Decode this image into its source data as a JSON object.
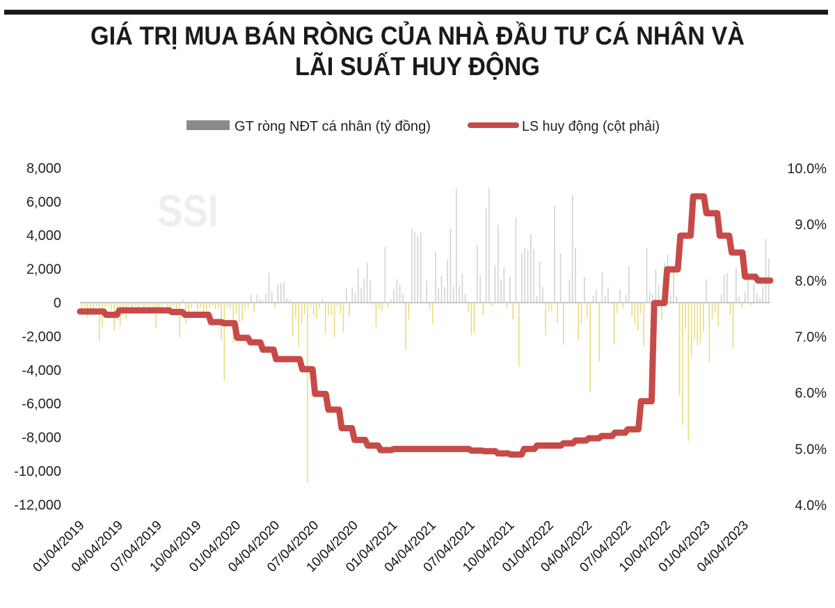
{
  "title_lines": [
    "GIÁ TRỊ MUA BÁN RÒNG CỦA NHÀ ĐẦU TƯ CÁ NHÂN VÀ",
    "LÃI SUẤT HUY ĐỘNG"
  ],
  "watermark": "SSI",
  "colors": {
    "rule": "#1a1a1a",
    "bar_positive": "#d2d2d2",
    "bar_negative": "#e9dc7c",
    "legend_bar": "#8a8a8a",
    "rate_line": "#c64b48",
    "zero_line": "#c8c8c8"
  },
  "chart_data": {
    "type": "bar+line",
    "title": "GIÁ TRỊ MUA BÁN RÒNG CỦA NHÀ ĐẦU TƯ CÁ NHÂN VÀ LÃI SUẤT HUY ĐỘNG",
    "legend": [
      {
        "label": "GT ròng NĐT cá nhân (tỷ đồng)",
        "type": "bar"
      },
      {
        "label": "LS huy động (cột phải)",
        "type": "line"
      }
    ],
    "legend_position": "top",
    "grid": false,
    "xlim": [
      "2018-12-30",
      "2023-05-30"
    ],
    "x_tick_labels": [
      "01/04/2019",
      "04/04/2019",
      "07/04/2019",
      "10/04/2019",
      "01/04/2020",
      "04/04/2020",
      "07/04/2020",
      "10/04/2020",
      "01/04/2021",
      "04/04/2021",
      "07/04/2021",
      "10/04/2021",
      "01/04/2022",
      "04/04/2022",
      "07/04/2022",
      "10/04/2022",
      "01/04/2023",
      "04/04/2023"
    ],
    "x_tick_dates": [
      "2019-01-04",
      "2019-04-04",
      "2019-07-04",
      "2019-10-04",
      "2020-01-04",
      "2020-04-04",
      "2020-07-04",
      "2020-10-04",
      "2021-01-04",
      "2021-04-04",
      "2021-07-04",
      "2021-10-04",
      "2022-01-04",
      "2022-04-04",
      "2022-07-04",
      "2022-10-04",
      "2023-01-04",
      "2023-04-04"
    ],
    "y_left": {
      "lim": [
        -12000,
        8000
      ],
      "ticks": [
        8000,
        6000,
        4000,
        2000,
        0,
        -2000,
        -4000,
        -6000,
        -8000,
        -10000,
        -12000
      ],
      "tick_labels": [
        "8,000",
        "6,000",
        "4,000",
        "2,000",
        "0",
        "-2,000",
        "-4,000",
        "-6,000",
        "-8,000",
        "-10,000",
        "-12,000"
      ]
    },
    "y_right": {
      "lim": [
        4.0,
        10.0
      ],
      "ticks": [
        10,
        9,
        8,
        7,
        6,
        5,
        4
      ],
      "tick_labels": [
        "10.0%",
        "9.0%",
        "8.0%",
        "7.0%",
        "6.0%",
        "5.0%",
        "4.0%"
      ]
    },
    "bars": {
      "name": "GT ròng NĐT cá nhân (tỷ đồng)",
      "frequency": "weekly",
      "values": [
        -350,
        -280,
        -900,
        -350,
        -690,
        -200,
        -2280,
        -1450,
        -280,
        -200,
        -410,
        -1660,
        -1040,
        -1380,
        -280,
        -970,
        -200,
        -280,
        -200,
        -280,
        -200,
        -280,
        -200,
        -280,
        -200,
        -1520,
        -280,
        -200,
        100,
        -280,
        -410,
        -200,
        -410,
        -2070,
        200,
        -1280,
        -690,
        -280,
        140,
        -480,
        -280,
        -550,
        -550,
        -280,
        -200,
        -410,
        -280,
        -2210,
        -4630,
        -280,
        -350,
        -2420,
        -690,
        -1170,
        -1100,
        -410,
        -280,
        480,
        -550,
        500,
        200,
        100,
        550,
        1750,
        650,
        -350,
        1060,
        1150,
        1200,
        280,
        180,
        -1980,
        -960,
        -2600,
        -1240,
        -690,
        -10700,
        -280,
        -760,
        -960,
        -350,
        230,
        -1840,
        -760,
        -690,
        -2080,
        -210,
        -690,
        -1730,
        860,
        -830,
        920,
        550,
        2070,
        870,
        1420,
        2400,
        1340,
        -140,
        -1430,
        -350,
        -480,
        3300,
        -280,
        200,
        790,
        1380,
        1060,
        550,
        -2830,
        -1030,
        4380,
        4190,
        4000,
        4190,
        100,
        1310,
        -350,
        -1280,
        3000,
        870,
        1620,
        930,
        2560,
        4380,
        1010,
        6770,
        970,
        1700,
        510,
        -550,
        -1930,
        -1800,
        3410,
        1620,
        -760,
        5620,
        6770,
        -200,
        2210,
        4630,
        1380,
        2070,
        -350,
        1520,
        -970,
        5070,
        -3800,
        2940,
        3270,
        3140,
        4100,
        3180,
        410,
        2420,
        930,
        -1930,
        -550,
        -480,
        5760,
        -1240,
        2900,
        -2490,
        70,
        1380,
        6400,
        3270,
        -2210,
        -1240,
        1520,
        -900,
        -5340,
        410,
        760,
        -3520,
        1800,
        410,
        900,
        70,
        -2490,
        -620,
        790,
        -350,
        480,
        2170,
        -830,
        -1310,
        -1660,
        -650,
        -2620,
        3250,
        650,
        510,
        1980,
        1060,
        -1010,
        2350,
        2860,
        410,
        1800,
        410,
        -5520,
        -7250,
        -1590,
        -8220,
        -3250,
        -2140,
        -2530,
        -2420,
        -1730,
        1380,
        -3520,
        -970,
        -550,
        -1380,
        480,
        1660,
        1750,
        -690,
        -2690,
        2070,
        350,
        -350,
        620,
        1730,
        -140,
        1170,
        550,
        280,
        970,
        3770,
        2620
      ]
    },
    "line": {
      "name": "LS huy động (cột phải)",
      "axis": "right",
      "unit": "%",
      "points": [
        [
          "2019-01",
          7.45
        ],
        [
          "2019-02",
          7.45
        ],
        [
          "2019-03",
          7.39
        ],
        [
          "2019-04",
          7.47
        ],
        [
          "2019-05",
          7.47
        ],
        [
          "2019-06",
          7.47
        ],
        [
          "2019-07",
          7.47
        ],
        [
          "2019-08",
          7.44
        ],
        [
          "2019-09",
          7.39
        ],
        [
          "2019-10",
          7.39
        ],
        [
          "2019-11",
          7.26
        ],
        [
          "2019-12",
          7.24
        ],
        [
          "2020-01",
          6.98
        ],
        [
          "2020-02",
          6.9
        ],
        [
          "2020-03",
          6.77
        ],
        [
          "2020-04",
          6.6
        ],
        [
          "2020-05",
          6.6
        ],
        [
          "2020-06",
          6.42
        ],
        [
          "2020-07",
          5.98
        ],
        [
          "2020-08",
          5.7
        ],
        [
          "2020-09",
          5.37
        ],
        [
          "2020-10",
          5.16
        ],
        [
          "2020-11",
          5.06
        ],
        [
          "2020-12",
          4.98
        ],
        [
          "2021-01",
          5.0
        ],
        [
          "2021-02",
          5.0
        ],
        [
          "2021-03",
          5.0
        ],
        [
          "2021-04",
          5.0
        ],
        [
          "2021-05",
          5.0
        ],
        [
          "2021-06",
          5.0
        ],
        [
          "2021-07",
          4.97
        ],
        [
          "2021-08",
          4.96
        ],
        [
          "2021-09",
          4.92
        ],
        [
          "2021-10",
          4.9
        ],
        [
          "2021-11",
          5.0
        ],
        [
          "2021-12",
          5.06
        ],
        [
          "2022-01",
          5.06
        ],
        [
          "2022-02",
          5.1
        ],
        [
          "2022-03",
          5.15
        ],
        [
          "2022-04",
          5.19
        ],
        [
          "2022-05",
          5.23
        ],
        [
          "2022-06",
          5.29
        ],
        [
          "2022-07",
          5.35
        ],
        [
          "2022-08",
          5.85
        ],
        [
          "2022-09",
          7.6
        ],
        [
          "2022-10",
          8.2
        ],
        [
          "2022-11",
          8.8
        ],
        [
          "2022-12",
          9.5
        ],
        [
          "2023-01",
          9.2
        ],
        [
          "2023-02",
          8.8
        ],
        [
          "2023-03",
          8.5
        ],
        [
          "2023-04",
          8.07
        ],
        [
          "2023-05",
          8.0
        ]
      ]
    }
  }
}
